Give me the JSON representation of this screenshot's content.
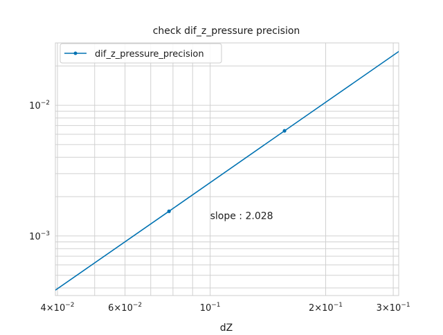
{
  "chart_data": {
    "type": "line",
    "title": "check dif_z_pressure precision",
    "xlabel": "dZ",
    "ylabel": "",
    "xscale": "log",
    "yscale": "log",
    "xlim": [
      0.0395,
      0.31
    ],
    "ylim": [
      0.00035,
      0.03
    ],
    "grid": true,
    "legend_position": "top-left",
    "series": [
      {
        "name": "dif_z_pressure_precision",
        "color": "#0072b2",
        "x": [
          0.0395,
          0.078125,
          0.15625,
          0.3125
        ],
        "y": [
          0.000385,
          0.001545,
          0.006375,
          0.0262
        ]
      }
    ],
    "marker_points": [
      {
        "x": 0.078125,
        "y": 0.001545
      },
      {
        "x": 0.15625,
        "y": 0.006375
      }
    ],
    "annotation": {
      "text": "slope : 2.028",
      "x": 0.1,
      "y": 0.00135
    },
    "x_ticks": [
      {
        "value": 0.04,
        "base": "4×10",
        "exp": "−2"
      },
      {
        "value": 0.06,
        "base": "6×10",
        "exp": "−2"
      },
      {
        "value": 0.1,
        "base": "10",
        "exp": "−1"
      },
      {
        "value": 0.2,
        "base": "2×10",
        "exp": "−1"
      },
      {
        "value": 0.3,
        "base": "3×10",
        "exp": "−1"
      }
    ],
    "y_ticks": [
      {
        "value": 0.01,
        "base": "10",
        "exp": "−2"
      },
      {
        "value": 0.001,
        "base": "10",
        "exp": "−3"
      }
    ],
    "x_grid": [
      0.04,
      0.05,
      0.06,
      0.07,
      0.08,
      0.09,
      0.1,
      0.2,
      0.3
    ],
    "y_grid": [
      0.0004,
      0.0005,
      0.0006,
      0.0007,
      0.0008,
      0.0009,
      0.001,
      0.002,
      0.003,
      0.004,
      0.005,
      0.006,
      0.007,
      0.008,
      0.009,
      0.01,
      0.02
    ]
  }
}
